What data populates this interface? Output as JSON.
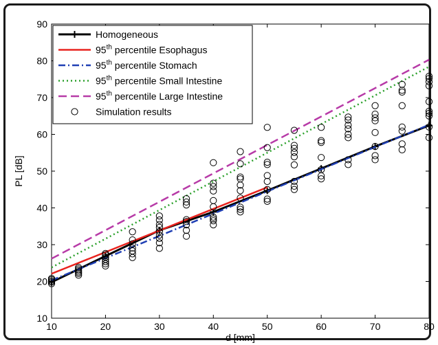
{
  "chart_data": {
    "type": "line",
    "xlabel": "d [mm]",
    "ylabel": "PL [dB]",
    "xlim": [
      10,
      80
    ],
    "ylim": [
      10,
      90
    ],
    "xticks": [
      10,
      20,
      30,
      40,
      50,
      60,
      70,
      80
    ],
    "yticks": [
      10,
      20,
      30,
      40,
      50,
      60,
      70,
      80,
      90
    ],
    "grid": false,
    "legend_position": "top-left",
    "series": [
      {
        "name": "Homogeneous",
        "style": "solid-plus",
        "color": "#000000",
        "x": [
          10,
          20,
          30,
          40,
          50,
          60,
          70,
          80
        ],
        "y": [
          19.8,
          26.9,
          33.9,
          38.9,
          44.7,
          50.7,
          56.7,
          62.4
        ]
      },
      {
        "name_prefix": "95",
        "name_sup": "th",
        "name_suffix": " percentile Esophagus",
        "style": "solid",
        "color": "#e8231e",
        "x": [
          10,
          50
        ],
        "y": [
          22.1,
          45.6
        ]
      },
      {
        "name_prefix": "95",
        "name_sup": "th",
        "name_suffix": " percentile Stomach",
        "style": "dashdot",
        "color": "#1f3fb4",
        "x": [
          10,
          80
        ],
        "y": [
          20.3,
          62.6
        ]
      },
      {
        "name_prefix": "95",
        "name_sup": "th",
        "name_suffix": " percentile Small Intestine",
        "style": "dotted",
        "color": "#2aa02a",
        "x": [
          10,
          80
        ],
        "y": [
          23.8,
          78.4
        ]
      },
      {
        "name_prefix": "95",
        "name_sup": "th",
        "name_suffix": " percentile Large Intestine",
        "style": "dashed",
        "color": "#b73aa7",
        "x": [
          10,
          80
        ],
        "y": [
          26.2,
          80.3
        ]
      }
    ],
    "scatter": {
      "name": "Simulation results",
      "color": "#000000",
      "points": [
        [
          10,
          19.8
        ],
        [
          10,
          20.1
        ],
        [
          10,
          20.5
        ],
        [
          10,
          19.4
        ],
        [
          10,
          20.8
        ],
        [
          15,
          21.7
        ],
        [
          15,
          22.2
        ],
        [
          15,
          22.6
        ],
        [
          15,
          23.0
        ],
        [
          15,
          23.4
        ],
        [
          15,
          23.8
        ],
        [
          20,
          24.2
        ],
        [
          20,
          24.8
        ],
        [
          20,
          25.4
        ],
        [
          20,
          26.0
        ],
        [
          20,
          26.6
        ],
        [
          20,
          27.2
        ],
        [
          20,
          27.6
        ],
        [
          25,
          26.5
        ],
        [
          25,
          27.5
        ],
        [
          25,
          28.3
        ],
        [
          25,
          29.1
        ],
        [
          25,
          30.2
        ],
        [
          25,
          31.3
        ],
        [
          25,
          33.5
        ],
        [
          30,
          29.0
        ],
        [
          30,
          30.5
        ],
        [
          30,
          31.7
        ],
        [
          30,
          32.6
        ],
        [
          30,
          33.6
        ],
        [
          30,
          34.7
        ],
        [
          30,
          35.5
        ],
        [
          30,
          36.7
        ],
        [
          30,
          37.8
        ],
        [
          35,
          32.3
        ],
        [
          35,
          33.9
        ],
        [
          35,
          35.4
        ],
        [
          35,
          36.3
        ],
        [
          35,
          36.8
        ],
        [
          35,
          40.8
        ],
        [
          35,
          41.6
        ],
        [
          35,
          42.5
        ],
        [
          40,
          35.4
        ],
        [
          40,
          36.5
        ],
        [
          40,
          37.0
        ],
        [
          40,
          37.5
        ],
        [
          40,
          40.3
        ],
        [
          40,
          42.0
        ],
        [
          40,
          44.6
        ],
        [
          40,
          45.8
        ],
        [
          40,
          46.7
        ],
        [
          40,
          52.3
        ],
        [
          45,
          38.9
        ],
        [
          45,
          39.6
        ],
        [
          45,
          40.2
        ],
        [
          45,
          42.7
        ],
        [
          45,
          44.7
        ],
        [
          45,
          46.2
        ],
        [
          45,
          47.9
        ],
        [
          45,
          48.4
        ],
        [
          45,
          52.0
        ],
        [
          45,
          55.3
        ],
        [
          50,
          41.8
        ],
        [
          50,
          42.4
        ],
        [
          50,
          45.0
        ],
        [
          50,
          47.2
        ],
        [
          50,
          48.8
        ],
        [
          50,
          51.8
        ],
        [
          50,
          52.4
        ],
        [
          50,
          56.4
        ],
        [
          50,
          61.9
        ],
        [
          55,
          45.0
        ],
        [
          55,
          45.9
        ],
        [
          55,
          47.2
        ],
        [
          55,
          51.7
        ],
        [
          55,
          53.9
        ],
        [
          55,
          55.1
        ],
        [
          55,
          56.2
        ],
        [
          55,
          57.0
        ],
        [
          55,
          61.1
        ],
        [
          60,
          47.9
        ],
        [
          60,
          48.7
        ],
        [
          60,
          50.4
        ],
        [
          60,
          53.7
        ],
        [
          60,
          57.8
        ],
        [
          60,
          58.3
        ],
        [
          60,
          61.9
        ],
        [
          65,
          51.8
        ],
        [
          65,
          53.1
        ],
        [
          65,
          59.1
        ],
        [
          65,
          60.0
        ],
        [
          65,
          61.5
        ],
        [
          65,
          62.5
        ],
        [
          65,
          63.9
        ],
        [
          65,
          64.7
        ],
        [
          70,
          53.1
        ],
        [
          70,
          54.2
        ],
        [
          70,
          56.7
        ],
        [
          70,
          60.5
        ],
        [
          70,
          63.7
        ],
        [
          70,
          64.5
        ],
        [
          70,
          65.5
        ],
        [
          70,
          67.8
        ],
        [
          75,
          55.8
        ],
        [
          75,
          57.4
        ],
        [
          75,
          60.9
        ],
        [
          75,
          62.0
        ],
        [
          75,
          67.8
        ],
        [
          75,
          71.5
        ],
        [
          75,
          72.0
        ],
        [
          75,
          73.6
        ],
        [
          80,
          59.1
        ],
        [
          80,
          62.0
        ],
        [
          80,
          65.0
        ],
        [
          80,
          65.7
        ],
        [
          80,
          66.3
        ],
        [
          80,
          68.9
        ],
        [
          80,
          73.2
        ],
        [
          80,
          74.3
        ],
        [
          80,
          75.2
        ],
        [
          80,
          75.8
        ]
      ]
    }
  }
}
